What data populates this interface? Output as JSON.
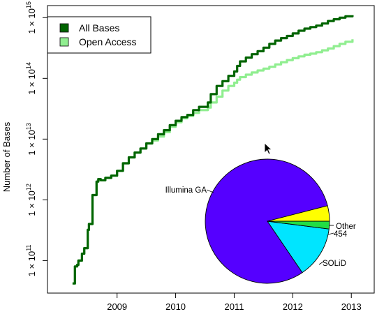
{
  "chart_data": [
    {
      "type": "line",
      "ylabel": "Number of Bases",
      "xlabel": "",
      "title": "",
      "y_scale": "log",
      "ylim": [
        40000000000.0,
        1500000000000000.0
      ],
      "xlim": [
        2008.05,
        2013.2
      ],
      "x_ticks": [
        {
          "value": 2009,
          "label": "2009"
        },
        {
          "value": 2010,
          "label": "2010"
        },
        {
          "value": 2011,
          "label": "2011"
        },
        {
          "value": 2012,
          "label": "2012"
        },
        {
          "value": 2013,
          "label": "2013"
        }
      ],
      "y_ticks": [
        {
          "value": 100000000000.0,
          "base": "1 × 10",
          "exp": "11"
        },
        {
          "value": 1000000000000.0,
          "base": "1 × 10",
          "exp": "12"
        },
        {
          "value": 10000000000000.0,
          "base": "1 × 10",
          "exp": "13"
        },
        {
          "value": 100000000000000.0,
          "base": "1 × 10",
          "exp": "14"
        },
        {
          "value": 1000000000000000.0,
          "base": "1 × 10",
          "exp": "15"
        }
      ],
      "legend_position": "top-left",
      "series": [
        {
          "name": "All Bases",
          "color": "#006400",
          "x": [
            2008.24,
            2008.28,
            2008.32,
            2008.34,
            2008.4,
            2008.44,
            2008.5,
            2008.52,
            2008.58,
            2008.65,
            2008.68,
            2008.72,
            2008.8,
            2008.9,
            2009.0,
            2009.1,
            2009.2,
            2009.3,
            2009.4,
            2009.5,
            2009.6,
            2009.7,
            2009.8,
            2009.9,
            2010.0,
            2010.1,
            2010.2,
            2010.3,
            2010.4,
            2010.55,
            2010.6,
            2010.7,
            2010.8,
            2010.9,
            2011.0,
            2011.05,
            2011.1,
            2011.2,
            2011.3,
            2011.4,
            2011.5,
            2011.6,
            2011.7,
            2011.8,
            2011.9,
            2012.0,
            2012.1,
            2012.2,
            2012.3,
            2012.4,
            2012.5,
            2012.6,
            2012.7,
            2012.8,
            2012.9,
            2013.02
          ],
          "values": [
            42000000000.0,
            80000000000.0,
            85000000000.0,
            100000000000.0,
            130000000000.0,
            160000000000.0,
            320000000000.0,
            400000000000.0,
            1200000000000.0,
            2000000000000.0,
            2200000000000.0,
            2100000000000.0,
            2300000000000.0,
            2500000000000.0,
            3000000000000.0,
            4000000000000.0,
            5000000000000.0,
            6000000000000.0,
            7000000000000.0,
            8500000000000.0,
            10000000000000.0,
            12000000000000.0,
            14000000000000.0,
            17000000000000.0,
            20000000000000.0,
            23000000000000.0,
            25000000000000.0,
            30000000000000.0,
            34000000000000.0,
            40000000000000.0,
            55000000000000.0,
            75000000000000.0,
            90000000000000.0,
            110000000000000.0,
            130000000000000.0,
            160000000000000.0,
            190000000000000.0,
            220000000000000.0,
            250000000000000.0,
            280000000000000.0,
            320000000000000.0,
            370000000000000.0,
            420000000000000.0,
            460000000000000.0,
            500000000000000.0,
            550000000000000.0,
            610000000000000.0,
            660000000000000.0,
            700000000000000.0,
            740000000000000.0,
            800000000000000.0,
            880000000000000.0,
            940000000000000.0,
            1000000000000000.0,
            1050000000000000.0,
            1100000000000000.0
          ]
        },
        {
          "name": "Open Access",
          "color": "#90EE90",
          "x": [
            2008.24,
            2008.28,
            2008.32,
            2008.34,
            2008.4,
            2008.44,
            2008.5,
            2008.52,
            2008.58,
            2008.65,
            2008.68,
            2008.72,
            2008.8,
            2008.9,
            2009.0,
            2009.1,
            2009.2,
            2009.3,
            2009.4,
            2009.5,
            2009.6,
            2009.7,
            2009.8,
            2009.9,
            2010.0,
            2010.1,
            2010.2,
            2010.3,
            2010.4,
            2010.55,
            2010.6,
            2010.7,
            2010.8,
            2010.9,
            2011.0,
            2011.05,
            2011.1,
            2011.2,
            2011.3,
            2011.4,
            2011.5,
            2011.6,
            2011.7,
            2011.8,
            2011.9,
            2012.0,
            2012.1,
            2012.2,
            2012.3,
            2012.4,
            2012.5,
            2012.6,
            2012.7,
            2012.8,
            2012.9,
            2013.02
          ],
          "values": [
            42000000000.0,
            80000000000.0,
            85000000000.0,
            100000000000.0,
            130000000000.0,
            160000000000.0,
            320000000000.0,
            400000000000.0,
            1200000000000.0,
            2000000000000.0,
            2200000000000.0,
            2100000000000.0,
            2300000000000.0,
            2500000000000.0,
            3000000000000.0,
            4000000000000.0,
            5000000000000.0,
            6000000000000.0,
            7000000000000.0,
            8500000000000.0,
            9500000000000.0,
            11000000000000.0,
            13000000000000.0,
            16000000000000.0,
            19000000000000.0,
            22000000000000.0,
            24000000000000.0,
            27000000000000.0,
            30000000000000.0,
            33000000000000.0,
            40000000000000.0,
            50000000000000.0,
            63000000000000.0,
            75000000000000.0,
            85000000000000.0,
            95000000000000.0,
            105000000000000.0,
            115000000000000.0,
            125000000000000.0,
            135000000000000.0,
            145000000000000.0,
            155000000000000.0,
            170000000000000.0,
            185000000000000.0,
            200000000000000.0,
            215000000000000.0,
            230000000000000.0,
            245000000000000.0,
            255000000000000.0,
            270000000000000.0,
            290000000000000.0,
            310000000000000.0,
            340000000000000.0,
            370000000000000.0,
            400000000000000.0,
            440000000000000.0
          ]
        }
      ]
    },
    {
      "type": "pie",
      "slices": [
        {
          "label": "Illumina GA",
          "value": 80.5,
          "color": "#5500FF"
        },
        {
          "label": "SOLiD",
          "value": 13.5,
          "color": "#00E5FF"
        },
        {
          "label": "454",
          "value": 2.0,
          "color": "#22DD44"
        },
        {
          "label": "Other",
          "value": 4.0,
          "color": "#FFFF00"
        }
      ]
    }
  ],
  "cursor": {
    "icon": "mouse-pointer-icon"
  }
}
